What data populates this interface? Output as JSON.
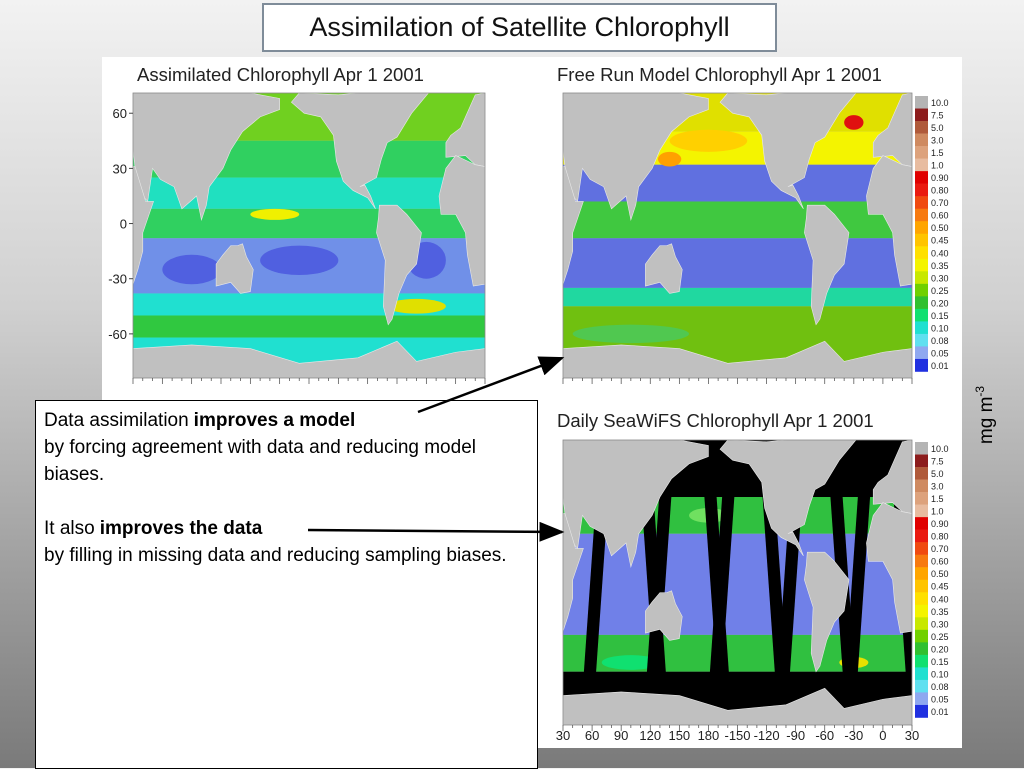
{
  "title": "Assimilation of Satellite Chlorophyll",
  "panels": [
    {
      "title": "Assimilated Chlorophyll Apr 1 2001"
    },
    {
      "title": "Free Run Model Chlorophyll Apr 1 2001"
    },
    {
      "title": "Daily SeaWiFS Chlorophyll Apr 1 2001"
    }
  ],
  "latitude_labels": [
    "60",
    "30",
    "0",
    "-30",
    "-60"
  ],
  "longitude_labels": [
    "30",
    "60",
    "90",
    "120",
    "150",
    "180",
    "-150",
    "-120",
    "-90",
    "-60",
    "-30",
    "0",
    "30"
  ],
  "colorbar": {
    "labels": [
      "10.0",
      "7.5",
      "5.0",
      "3.0",
      "1.5",
      "1.0",
      "0.90",
      "0.80",
      "0.70",
      "0.60",
      "0.50",
      "0.45",
      "0.40",
      "0.35",
      "0.30",
      "0.25",
      "0.20",
      "0.15",
      "0.10",
      "0.08",
      "0.05",
      "0.01"
    ],
    "colors": [
      "#b4b4b4",
      "#8c1c1c",
      "#b05a3a",
      "#cf8a60",
      "#dda27c",
      "#e8bca0",
      "#e00000",
      "#ea1a10",
      "#f04a10",
      "#f77a10",
      "#ffa500",
      "#ffc400",
      "#ffe000",
      "#f4f400",
      "#c8e800",
      "#70d000",
      "#30c030",
      "#10e070",
      "#20e0d0",
      "#60e0f0",
      "#8fa8f0",
      "#2030e0"
    ]
  },
  "unit": {
    "text": "mg m",
    "superscript": "-3"
  },
  "text_box": {
    "paragraphs": [
      {
        "lead": "Data assimilation",
        "emphasis": "improves a model",
        "rest": "by forcing agreement with data and reducing model biases."
      },
      {
        "lead": "It also",
        "emphasis": "improves the data",
        "rest": "by filling in missing data and reducing sampling biases."
      }
    ]
  }
}
